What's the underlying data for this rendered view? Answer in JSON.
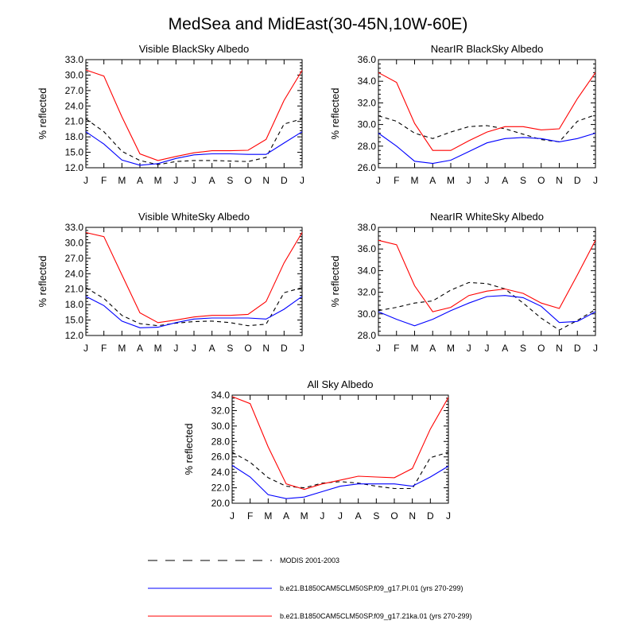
{
  "figure": {
    "title": "MedSea and MidEast(30-45N,10W-60E)"
  },
  "legend": [
    {
      "label": "MODIS 2001-2003",
      "color": "#000000",
      "dash": "dashed",
      "series": "modis"
    },
    {
      "label": "b.e21.B1850CAM5CLM50SP.f09_g17.PI.01 (yrs 270-299)",
      "color": "#0000ff",
      "dash": "solid",
      "series": "pi"
    },
    {
      "label": "b.e21.B1850CAM5CLM50SP.f09_g17.21ka.01 (yrs 270-299)",
      "color": "#ff0000",
      "dash": "solid",
      "series": "lgm"
    }
  ],
  "colors": {
    "modis": "#000000",
    "pi": "#0000ff",
    "lgm": "#ff0000"
  },
  "chart_data": [
    {
      "type": "line",
      "title": "Visible BlackSky Albedo",
      "ylabel": "% reflected",
      "xlabel": "",
      "categories": [
        "J",
        "F",
        "M",
        "A",
        "M",
        "J",
        "J",
        "A",
        "S",
        "O",
        "N",
        "D",
        "J"
      ],
      "ylim": [
        12.0,
        33.0
      ],
      "yticks": [
        "12.0",
        "15.0",
        "18.0",
        "21.0",
        "24.0",
        "27.0",
        "30.0",
        "33.0"
      ],
      "series": [
        {
          "name": "MODIS 2001-2003",
          "key": "modis",
          "values": [
            21.5,
            19.0,
            15.2,
            13.4,
            12.6,
            13.2,
            13.4,
            13.4,
            13.3,
            13.2,
            14.0,
            20.5,
            21.5
          ]
        },
        {
          "name": "b.e21.B1850CAM5CLM50SP.f09_g17.PI.01 (yrs 270-299)",
          "key": "pi",
          "values": [
            19.0,
            16.6,
            13.5,
            12.5,
            12.8,
            13.8,
            14.5,
            14.7,
            14.7,
            14.6,
            14.6,
            16.8,
            19.0
          ]
        },
        {
          "name": "b.e21.B1850CAM5CLM50SP.f09_g17.21ka.01 (yrs 270-299)",
          "key": "lgm",
          "values": [
            31.0,
            29.8,
            21.9,
            14.7,
            13.4,
            14.2,
            14.9,
            15.3,
            15.3,
            15.4,
            17.5,
            25.1,
            30.9
          ]
        }
      ]
    },
    {
      "type": "line",
      "title": "NearIR BlackSky Albedo",
      "ylabel": "% reflected",
      "xlabel": "",
      "categories": [
        "J",
        "F",
        "M",
        "A",
        "M",
        "J",
        "J",
        "A",
        "S",
        "O",
        "N",
        "D",
        "J"
      ],
      "ylim": [
        26.0,
        36.0
      ],
      "yticks": [
        "26.0",
        "28.0",
        "30.0",
        "32.0",
        "34.0",
        "36.0"
      ],
      "series": [
        {
          "name": "MODIS 2001-2003",
          "key": "modis",
          "values": [
            30.8,
            30.3,
            29.2,
            28.7,
            29.3,
            29.8,
            29.9,
            29.6,
            29.1,
            28.6,
            28.4,
            30.3,
            30.9
          ]
        },
        {
          "name": "b.e21.B1850CAM5CLM50SP.f09_g17.PI.01 (yrs 270-299)",
          "key": "pi",
          "values": [
            29.2,
            28.0,
            26.6,
            26.4,
            26.7,
            27.5,
            28.3,
            28.7,
            28.8,
            28.7,
            28.4,
            28.7,
            29.2
          ]
        },
        {
          "name": "b.e21.B1850CAM5CLM50SP.f09_g17.21ka.01 (yrs 270-299)",
          "key": "lgm",
          "values": [
            34.8,
            33.9,
            30.1,
            27.6,
            27.6,
            28.5,
            29.3,
            29.8,
            29.8,
            29.5,
            29.6,
            32.4,
            34.8
          ]
        }
      ]
    },
    {
      "type": "line",
      "title": "Visible WhiteSky Albedo",
      "ylabel": "% reflected",
      "xlabel": "",
      "categories": [
        "J",
        "F",
        "M",
        "A",
        "M",
        "J",
        "J",
        "A",
        "S",
        "O",
        "N",
        "D",
        "J"
      ],
      "ylim": [
        12.0,
        33.0
      ],
      "yticks": [
        "12.0",
        "15.0",
        "18.0",
        "21.0",
        "24.0",
        "27.0",
        "30.0",
        "33.0"
      ],
      "series": [
        {
          "name": "MODIS 2001-2003",
          "key": "modis",
          "values": [
            21.3,
            19.2,
            15.9,
            14.3,
            13.9,
            14.4,
            14.7,
            14.8,
            14.5,
            13.9,
            14.2,
            20.3,
            21.3
          ]
        },
        {
          "name": "b.e21.B1850CAM5CLM50SP.f09_g17.PI.01 (yrs 270-299)",
          "key": "pi",
          "values": [
            19.6,
            17.8,
            14.8,
            13.5,
            13.6,
            14.5,
            15.2,
            15.4,
            15.4,
            15.4,
            15.2,
            17.1,
            19.6
          ]
        },
        {
          "name": "b.e21.B1850CAM5CLM50SP.f09_g17.21ka.01 (yrs 270-299)",
          "key": "lgm",
          "values": [
            32.0,
            31.2,
            23.8,
            16.4,
            14.5,
            15.0,
            15.6,
            15.9,
            15.9,
            16.1,
            18.6,
            26.1,
            32.0
          ]
        }
      ]
    },
    {
      "type": "line",
      "title": "NearIR WhiteSky Albedo",
      "ylabel": "% reflected",
      "xlabel": "",
      "categories": [
        "J",
        "F",
        "M",
        "A",
        "M",
        "J",
        "J",
        "A",
        "S",
        "O",
        "N",
        "D",
        "J"
      ],
      "ylim": [
        28.0,
        38.0
      ],
      "yticks": [
        "28.0",
        "30.0",
        "32.0",
        "34.0",
        "36.0",
        "38.0"
      ],
      "series": [
        {
          "name": "MODIS 2001-2003",
          "key": "modis",
          "values": [
            30.3,
            30.6,
            31.0,
            31.2,
            32.2,
            32.9,
            32.8,
            32.3,
            31.0,
            29.6,
            28.5,
            29.4,
            30.4
          ]
        },
        {
          "name": "b.e21.B1850CAM5CLM50SP.f09_g17.PI.01 (yrs 270-299)",
          "key": "pi",
          "values": [
            30.2,
            29.5,
            28.9,
            29.5,
            30.3,
            31.0,
            31.6,
            31.7,
            31.5,
            30.7,
            29.2,
            29.3,
            30.2
          ]
        },
        {
          "name": "b.e21.B1850CAM5CLM50SP.f09_g17.21ka.01 (yrs 270-299)",
          "key": "lgm",
          "values": [
            36.8,
            36.4,
            32.6,
            30.2,
            30.6,
            31.7,
            32.1,
            32.3,
            31.9,
            31.0,
            30.5,
            33.6,
            36.8
          ]
        }
      ]
    },
    {
      "type": "line",
      "title": "All Sky Albedo",
      "ylabel": "% reflected",
      "xlabel": "",
      "categories": [
        "J",
        "F",
        "M",
        "A",
        "M",
        "J",
        "J",
        "A",
        "S",
        "O",
        "N",
        "D",
        "J"
      ],
      "ylim": [
        20.0,
        34.0
      ],
      "yticks": [
        "20.0",
        "22.0",
        "24.0",
        "26.0",
        "28.0",
        "30.0",
        "32.0",
        "34.0"
      ],
      "series": [
        {
          "name": "MODIS 2001-2003",
          "key": "modis",
          "values": [
            26.6,
            25.3,
            23.3,
            22.2,
            22.0,
            22.6,
            22.8,
            22.6,
            22.2,
            21.9,
            21.9,
            25.9,
            26.6
          ]
        },
        {
          "name": "b.e21.B1850CAM5CLM50SP.f09_g17.PI.01 (yrs 270-299)",
          "key": "pi",
          "values": [
            24.9,
            23.4,
            21.1,
            20.6,
            20.8,
            21.5,
            22.2,
            22.5,
            22.5,
            22.5,
            22.2,
            23.4,
            24.8
          ]
        },
        {
          "name": "b.e21.B1850CAM5CLM50SP.f09_g17.21ka.01 (yrs 270-299)",
          "key": "lgm",
          "values": [
            33.8,
            32.9,
            27.3,
            22.5,
            21.8,
            22.5,
            23.0,
            23.5,
            23.4,
            23.3,
            24.5,
            29.6,
            33.7
          ]
        }
      ]
    }
  ]
}
